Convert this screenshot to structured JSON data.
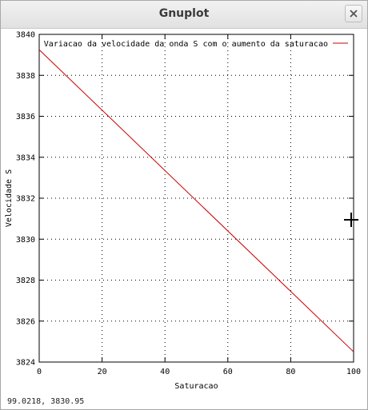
{
  "window": {
    "title": "Gnuplot"
  },
  "status": {
    "coords": "99.0218,  3830.95"
  },
  "chart_data": {
    "type": "line",
    "xlabel": "Saturacao",
    "ylabel": "Velocidade S",
    "xlim": [
      0,
      100
    ],
    "ylim": [
      3824,
      3840
    ],
    "xticks": [
      0,
      20,
      40,
      60,
      80,
      100
    ],
    "yticks": [
      3824,
      3826,
      3828,
      3830,
      3832,
      3834,
      3836,
      3838,
      3840
    ],
    "grid": true,
    "legend_position": "top-right",
    "series": [
      {
        "name": "Variacao da velocidade da onda S com o aumento da saturacao",
        "color": "#cc0000",
        "x": [
          0,
          100
        ],
        "y": [
          3839.25,
          3824.5
        ]
      }
    ]
  }
}
